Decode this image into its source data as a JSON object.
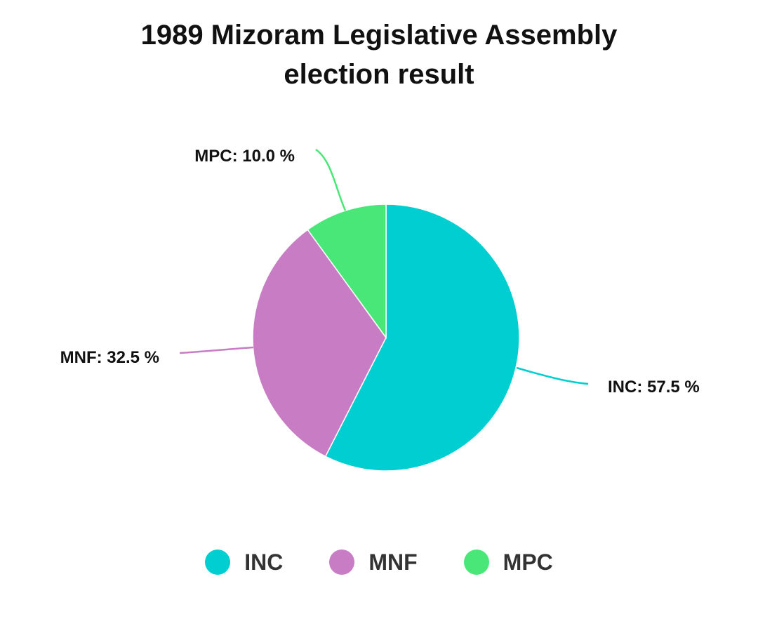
{
  "chart_data": {
    "type": "pie",
    "title_lines": [
      "1989 Mizoram Legislative Assembly",
      "election result"
    ],
    "slices": [
      {
        "name": "INC",
        "value": 57.5,
        "color": "#00CED1",
        "label": "INC: 57.5 %"
      },
      {
        "name": "MNF",
        "value": 32.5,
        "color": "#C77CC4",
        "label": "MNF: 32.5 %"
      },
      {
        "name": "MPC",
        "value": 10.0,
        "color": "#48E777",
        "label": "MPC: 10.0 %"
      }
    ],
    "legend": {
      "position": "bottom",
      "items": [
        {
          "name": "INC",
          "color": "#00CED1"
        },
        {
          "name": "MNF",
          "color": "#C77CC4"
        },
        {
          "name": "MPC",
          "color": "#48E777"
        }
      ]
    }
  }
}
